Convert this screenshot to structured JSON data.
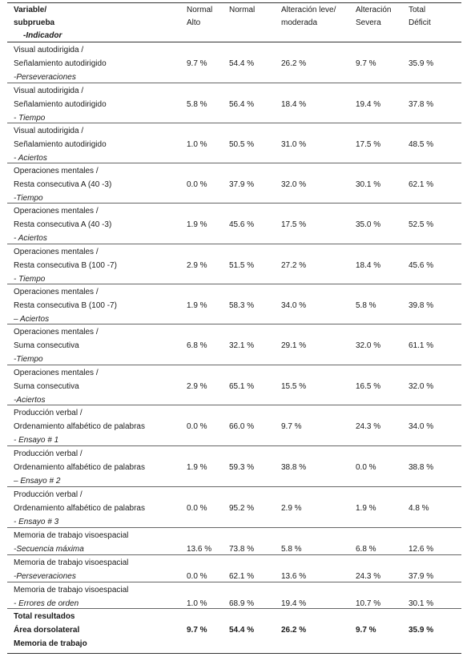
{
  "header": {
    "var_l1": "Variable/",
    "var_l2": "subprueba",
    "var_l3": "-Indicador",
    "c1_l1": "Normal",
    "c1_l2": "Alto",
    "c2_l1": "Normal",
    "c3_l1": "Alteración leve/",
    "c3_l2": "moderada",
    "c4_l1": "Alteración",
    "c4_l2": "Severa",
    "c5_l1": "Total",
    "c5_l2": "Déficit"
  },
  "rows": [
    {
      "l1": "Visual autodirigida /",
      "l2": "Señalamiento autodirigido",
      "l3": " -Perseveraciones",
      "v1": "9.7 %",
      "v2": "54.4 %",
      "v3": "26.2 %",
      "v4": "9.7 %",
      "v5": "35.9 %"
    },
    {
      "l1": "Visual autodirigida /",
      "l2": "Señalamiento autodirigido",
      "l3": "- Tiempo",
      "v1": "5.8 %",
      "v2": "56.4 %",
      "v3": "18.4 %",
      "v4": "19.4 %",
      "v5": "37.8 %"
    },
    {
      "l1": "Visual autodirigida /",
      "l2": "Señalamiento autodirigido",
      "l3": "- Aciertos",
      "v1": "1.0 %",
      "v2": "50.5 %",
      "v3": "31.0 %",
      "v4": "17.5 %",
      "v5": "48.5 %"
    },
    {
      "l1": "Operaciones mentales /",
      "l2": "Resta consecutiva A (40 -3)",
      "l3": "-Tiempo",
      "v1": "0.0 %",
      "v2": "37.9 %",
      "v3": "32.0 %",
      "v4": "30.1 %",
      "v5": "62.1 %"
    },
    {
      "l1": "Operaciones mentales /",
      "l2": "Resta consecutiva A (40 -3)",
      "l3": " - Aciertos",
      "v1": "1.9 %",
      "v2": "45.6 %",
      "v3": "17.5 %",
      "v4": "35.0 %",
      "v5": "52.5 %"
    },
    {
      "l1": "Operaciones mentales /",
      "l2": "Resta consecutiva B (100 -7)",
      "l3": "- Tiempo",
      "v1": "2.9 %",
      "v2": "51.5 %",
      "v3": "27.2 %",
      "v4": "18.4 %",
      "v5": "45.6 %"
    },
    {
      "l1": "Operaciones mentales /",
      "l2": "Resta consecutiva B (100 -7)",
      "l3": "– Aciertos",
      "v1": "1.9 %",
      "v2": "58.3 %",
      "v3": "34.0 %",
      "v4": "5.8 %",
      "v5": "39.8 %"
    },
    {
      "l1": "Operaciones mentales /",
      "l2": "Suma consecutiva",
      "l3": "-Tiempo",
      "v1": "6.8 %",
      "v2": "32.1 %",
      "v3": "29.1 %",
      "v4": "32.0 %",
      "v5": "61.1 %"
    },
    {
      "l1": "Operaciones mentales /",
      "l2": "Suma consecutiva",
      "l3": "-Aciertos",
      "v1": "2.9 %",
      "v2": "65.1 %",
      "v3": "15.5 %",
      "v4": "16.5 %",
      "v5": "32.0 %"
    },
    {
      "l1": "Producción verbal /",
      "l2": "Ordenamiento alfabético de palabras",
      "l3": "- Ensayo # 1",
      "v1": "0.0 %",
      "v2": "66.0 %",
      "v3": "9.7 %",
      "v4": "24.3 %",
      "v5": "34.0 %"
    },
    {
      "l1": "Producción verbal /",
      "l2": "Ordenamiento alfabético de palabras",
      "l3": "– Ensayo # 2",
      "v1": "1.9 %",
      "v2": "59.3 %",
      "v3": "38.8 %",
      "v4": "0.0 %",
      "v5": "38.8 %"
    },
    {
      "l1": "Producción verbal /",
      "l2": "Ordenamiento alfabético de palabras",
      "l3": "- Ensayo # 3",
      "v1": "0.0 %",
      "v2": "95.2 %",
      "v3": "2.9 %",
      "v4": "1.9 %",
      "v5": "4.8 %"
    },
    {
      "l1": "Memoria de trabajo visoespacial",
      "l2": "-Secuencia máxima",
      "l3": "",
      "v1": "13.6 %",
      "v2": "73.8 %",
      "v3": "5.8 %",
      "v4": "6.8 %",
      "v5": "12.6 %"
    },
    {
      "l1": "Memoria de trabajo visoespacial",
      "l2": "-Perseveraciones",
      "l3": "",
      "v1": "0.0 %",
      "v2": "62.1 %",
      "v3": "13.6 %",
      "v4": "24.3 %",
      "v5": "37.9 %"
    },
    {
      "l1": "Memoria de trabajo visoespacial",
      "l2": "- Errores de orden",
      "l3": "",
      "v1": "1.0 %",
      "v2": "68.9 %",
      "v3": "19.4 %",
      "v4": "10.7 %",
      "v5": "30.1 %"
    }
  ],
  "total": {
    "l1": "Total resultados",
    "l2": "Área dorsolateral",
    "l3": "Memoria de trabajo",
    "v1": "9.7 %",
    "v2": "54.4 %",
    "v3": "26.2 %",
    "v4": "9.7 %",
    "v5": "35.9 %"
  }
}
